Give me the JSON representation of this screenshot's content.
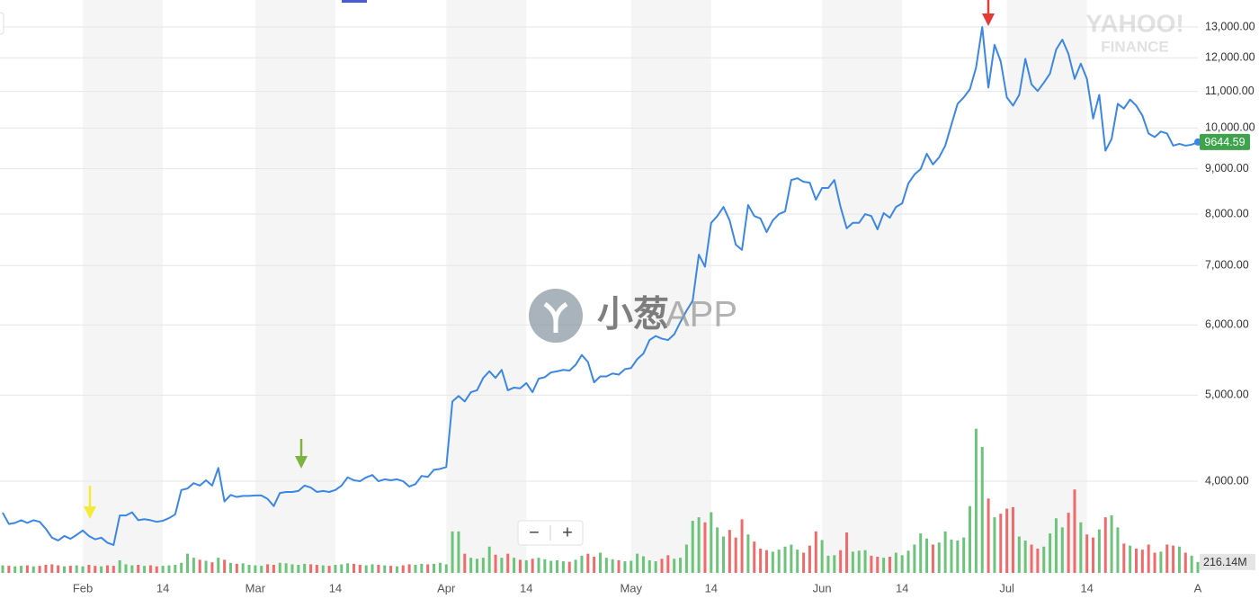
{
  "chart_data": {
    "type": "line",
    "categories": [
      null,
      null,
      null,
      null,
      null,
      null,
      null,
      null,
      null,
      null,
      null,
      null,
      null,
      "Feb",
      null,
      null,
      null,
      null,
      null,
      null,
      null,
      null,
      null,
      null,
      null,
      null,
      "14",
      null,
      null,
      null,
      null,
      null,
      null,
      null,
      null,
      null,
      null,
      null,
      null,
      null,
      null,
      "Mar",
      null,
      null,
      null,
      null,
      null,
      null,
      null,
      null,
      null,
      null,
      null,
      null,
      "14",
      null,
      null,
      null,
      null,
      null,
      null,
      null,
      null,
      null,
      null,
      null,
      null,
      null,
      null,
      null,
      null,
      null,
      "Apr",
      null,
      null,
      null,
      null,
      null,
      null,
      null,
      null,
      null,
      null,
      null,
      null,
      "14",
      null,
      null,
      null,
      null,
      null,
      null,
      null,
      null,
      null,
      null,
      null,
      null,
      null,
      null,
      null,
      null,
      "May",
      null,
      null,
      null,
      null,
      null,
      null,
      null,
      null,
      null,
      null,
      null,
      null,
      "14",
      null,
      null,
      null,
      null,
      null,
      null,
      null,
      null,
      null,
      null,
      null,
      null,
      null,
      null,
      null,
      null,
      null,
      "Jun",
      null,
      null,
      null,
      null,
      null,
      null,
      null,
      null,
      null,
      null,
      null,
      null,
      "14",
      null,
      null,
      null,
      null,
      null,
      null,
      null,
      null,
      null,
      null,
      null,
      null,
      null,
      null,
      null,
      null,
      "Jul",
      null,
      null,
      null,
      null,
      null,
      null,
      null,
      null,
      null,
      null,
      null,
      null,
      "14",
      null,
      null,
      null,
      null,
      null,
      null,
      null,
      null,
      null,
      null,
      null,
      null,
      null,
      null,
      null,
      null,
      null,
      "A"
    ],
    "series": [
      {
        "color": "#3b87e3",
        "values": [
          3686,
          3580,
          3590,
          3615,
          3590,
          3615,
          3600,
          3535,
          3455,
          3430,
          3470,
          3445,
          3480,
          3520,
          3470,
          3440,
          3455,
          3410,
          3390,
          3660,
          3660,
          3690,
          3615,
          3625,
          3615,
          3600,
          3610,
          3635,
          3670,
          3910,
          3925,
          3980,
          3955,
          4010,
          3955,
          4140,
          3795,
          3860,
          3840,
          3850,
          3850,
          3855,
          3855,
          3820,
          3750,
          3880,
          3890,
          3890,
          3900,
          3955,
          3935,
          3890,
          3900,
          3890,
          3910,
          3955,
          4040,
          4010,
          4000,
          4040,
          4065,
          4000,
          4020,
          4010,
          4020,
          4000,
          3945,
          3970,
          4055,
          4045,
          4120,
          4130,
          4150,
          4920,
          4990,
          4920,
          5040,
          5065,
          5230,
          5320,
          5230,
          5340,
          5065,
          5100,
          5090,
          5160,
          5040,
          5220,
          5240,
          5305,
          5320,
          5340,
          5330,
          5410,
          5550,
          5450,
          5170,
          5250,
          5250,
          5290,
          5275,
          5350,
          5365,
          5490,
          5570,
          5770,
          5830,
          5790,
          5770,
          5855,
          6045,
          6225,
          6390,
          7200,
          6980,
          7820,
          7960,
          8150,
          7870,
          7390,
          7290,
          8190,
          7960,
          7910,
          7635,
          7870,
          8000,
          8055,
          8740,
          8780,
          8700,
          8680,
          8305,
          8560,
          8560,
          8740,
          8150,
          7710,
          7820,
          7820,
          8000,
          7960,
          7690,
          8020,
          7925,
          8150,
          8225,
          8660,
          8865,
          8990,
          9355,
          9100,
          9270,
          9555,
          10090,
          10650,
          10830,
          11060,
          11700,
          13000,
          11110,
          12410,
          11890,
          10830,
          10600,
          10900,
          11970,
          11200,
          11010,
          11250,
          11520,
          12260,
          12580,
          12120,
          11360,
          11820,
          11360,
          10250,
          10900,
          9430,
          9720,
          10650,
          10520,
          10770,
          10600,
          10330,
          9860,
          9770,
          9910,
          9860,
          9555,
          9600,
          9555,
          9580,
          9644.59
        ]
      },
      {
        "axis": "y2",
        "colors": [
          "#6cc47b",
          "#ef6b6b"
        ],
        "values": [
          150,
          140,
          130,
          140,
          150,
          130,
          140,
          160,
          170,
          150,
          130,
          140,
          150,
          130,
          160,
          140,
          130,
          150,
          140,
          250,
          170,
          150,
          160,
          140,
          150,
          130,
          140,
          150,
          160,
          200,
          380,
          300,
          260,
          240,
          210,
          300,
          260,
          200,
          180,
          190,
          160,
          150,
          140,
          170,
          160,
          200,
          190,
          170,
          160,
          180,
          170,
          160,
          150,
          140,
          160,
          170,
          190,
          180,
          160,
          150,
          170,
          160,
          150,
          140,
          130,
          150,
          170,
          160,
          180,
          170,
          180,
          200,
          170,
          820,
          820,
          380,
          300,
          280,
          300,
          520,
          360,
          300,
          380,
          300,
          260,
          250,
          280,
          300,
          270,
          240,
          250,
          230,
          220,
          260,
          340,
          380,
          320,
          400,
          300,
          270,
          250,
          230,
          240,
          380,
          330,
          250,
          230,
          280,
          350,
          280,
          300,
          560,
          1030,
          1100,
          1000,
          1200,
          900,
          720,
          850,
          700,
          1060,
          760,
          620,
          480,
          450,
          420,
          460,
          520,
          560,
          460,
          400,
          540,
          820,
          650,
          340,
          350,
          450,
          800,
          420,
          440,
          450,
          340,
          320,
          300,
          320,
          400,
          350,
          440,
          560,
          780,
          680,
          560,
          600,
          820,
          660,
          640,
          700,
          1320,
          2850,
          2490,
          1470,
          1100,
          1170,
          1270,
          1300,
          720,
          640,
          560,
          480,
          520,
          780,
          1080,
          900,
          1190,
          1650,
          1000,
          760,
          700,
          860,
          1100,
          1140,
          900,
          580,
          540,
          480,
          460,
          560,
          400,
          420,
          560,
          540,
          520,
          400,
          340,
          216.14
        ]
      }
    ],
    "log_scale": true,
    "grid": true,
    "ylim": [
      3153,
      13943
    ],
    "yticks": [
      {
        "value": 4000,
        "label": "4,000.00"
      },
      {
        "value": 5000,
        "label": "5,000.00"
      },
      {
        "value": 6000,
        "label": "6,000.00"
      },
      {
        "value": 7000,
        "label": "7,000.00"
      },
      {
        "value": 8000,
        "label": "8,000.00"
      },
      {
        "value": 9000,
        "label": "9,000.00"
      },
      {
        "value": 10000,
        "label": "10,000.00"
      },
      {
        "value": 11000,
        "label": "11,000.00"
      },
      {
        "value": 12000,
        "label": "12,000.00"
      },
      {
        "value": 13000,
        "label": "13,000.00"
      }
    ],
    "y2lim": [
      0,
      4000
    ],
    "y2ticks": [
      {
        "value": 216.14,
        "label": "216.14M"
      }
    ]
  },
  "watermark": {
    "brand": "小葱",
    "app": "APP"
  },
  "logo": [
    "YAHOO!",
    "FINANCE"
  ],
  "zoom_controls": [
    "−",
    "+"
  ]
}
